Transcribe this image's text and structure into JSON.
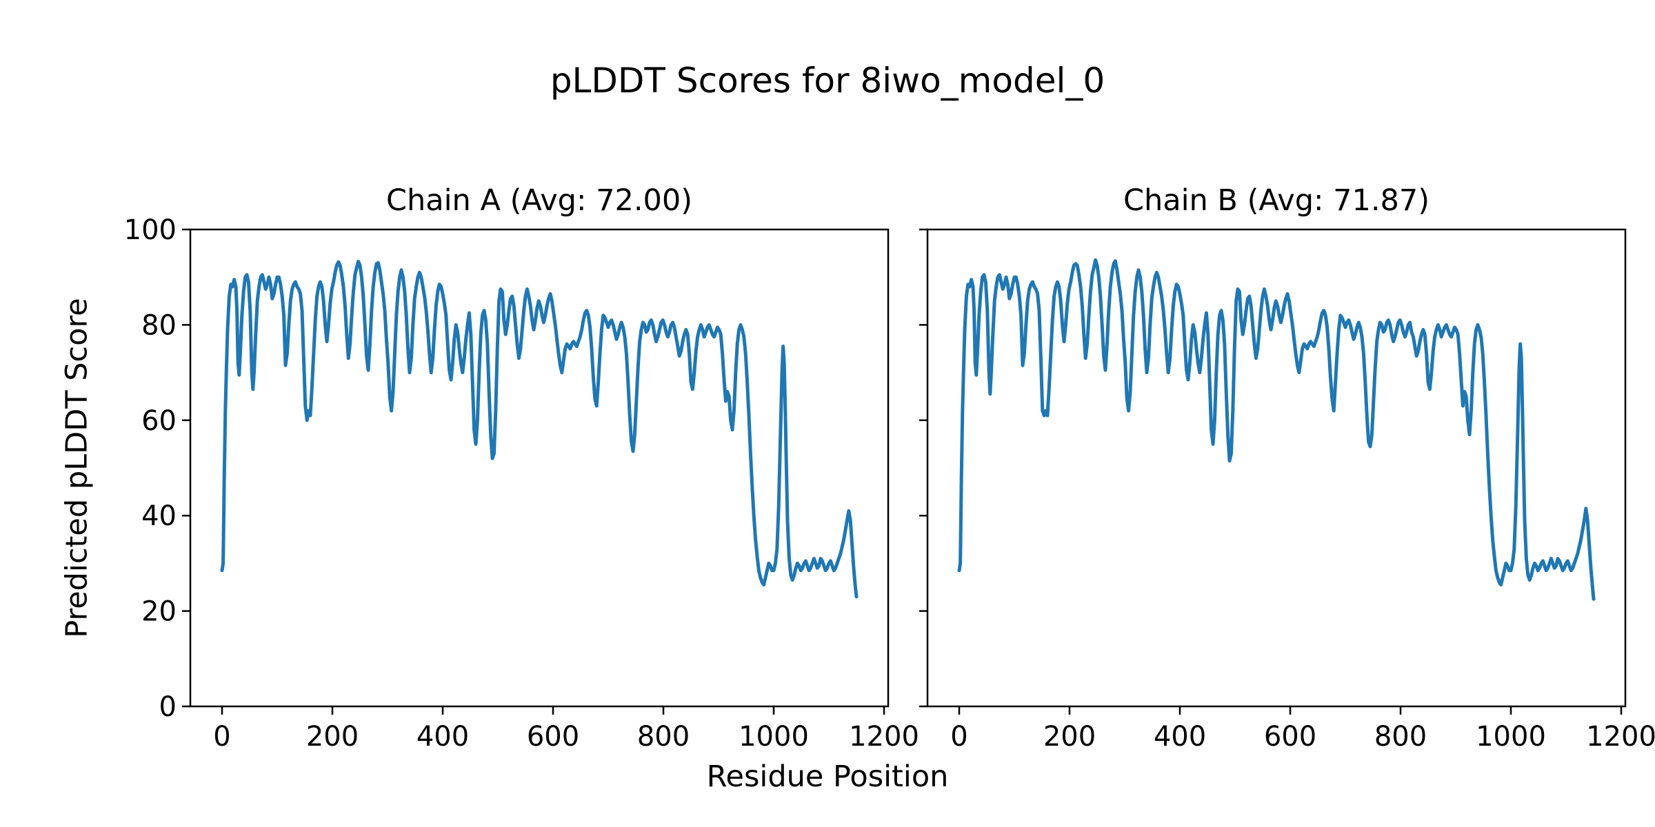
{
  "figure": {
    "suptitle": "pLDDT Scores for 8iwo_model_0",
    "background_color": "#ffffff",
    "text_color": "#000000"
  },
  "chart_data": {
    "type": "line",
    "title": "pLDDT Scores for 8iwo_model_0",
    "xlabel": "Residue Position",
    "ylabel": "Predicted pLDDT Score",
    "xlim": [
      -57.5,
      1207.5
    ],
    "ylim": [
      0,
      100
    ],
    "xticks": [
      0,
      200,
      400,
      600,
      800,
      1000,
      1200
    ],
    "yticks": [
      0,
      20,
      40,
      60,
      80,
      100
    ],
    "grid": false,
    "legend_position": "none",
    "line_color": "#1f77b4",
    "spine_color": "#000000",
    "x": [
      0,
      2,
      4,
      6,
      8,
      10,
      13,
      16,
      19,
      22,
      25,
      27,
      29,
      31,
      33,
      36,
      39,
      42,
      45,
      48,
      51,
      54,
      56,
      58,
      61,
      64,
      67,
      70,
      73,
      76,
      79,
      82,
      85,
      88,
      91,
      94,
      97,
      100,
      103,
      106,
      109,
      112,
      115,
      118,
      121,
      124,
      127,
      130,
      133,
      136,
      139,
      142,
      145,
      148,
      151,
      154,
      157,
      160,
      163,
      166,
      169,
      172,
      175,
      178,
      181,
      184,
      187,
      190,
      193,
      196,
      199,
      202,
      205,
      208,
      211,
      214,
      217,
      220,
      223,
      226,
      229,
      232,
      235,
      238,
      241,
      244,
      247,
      250,
      253,
      256,
      259,
      262,
      265,
      268,
      271,
      274,
      277,
      280,
      283,
      286,
      289,
      292,
      295,
      298,
      301,
      304,
      307,
      310,
      313,
      316,
      319,
      322,
      325,
      328,
      331,
      334,
      337,
      340,
      343,
      346,
      349,
      352,
      355,
      358,
      361,
      364,
      367,
      370,
      373,
      376,
      379,
      382,
      385,
      388,
      391,
      394,
      397,
      400,
      403,
      406,
      409,
      412,
      415,
      418,
      421,
      424,
      427,
      430,
      433,
      436,
      439,
      442,
      445,
      448,
      451,
      454,
      457,
      460,
      463,
      466,
      469,
      472,
      475,
      478,
      481,
      484,
      487,
      490,
      493,
      496,
      499,
      502,
      505,
      508,
      511,
      514,
      517,
      520,
      523,
      526,
      529,
      532,
      535,
      538,
      541,
      544,
      547,
      550,
      553,
      556,
      559,
      562,
      565,
      568,
      571,
      574,
      577,
      580,
      583,
      586,
      589,
      592,
      595,
      598,
      601,
      604,
      607,
      610,
      613,
      616,
      619,
      622,
      625,
      628,
      631,
      634,
      637,
      640,
      643,
      646,
      649,
      652,
      655,
      658,
      661,
      664,
      667,
      670,
      673,
      676,
      679,
      682,
      685,
      688,
      691,
      694,
      697,
      700,
      703,
      706,
      709,
      712,
      715,
      718,
      721,
      724,
      727,
      730,
      733,
      736,
      739,
      742,
      745,
      748,
      751,
      754,
      757,
      760,
      763,
      766,
      769,
      772,
      775,
      778,
      781,
      784,
      787,
      790,
      793,
      796,
      799,
      802,
      805,
      808,
      811,
      814,
      817,
      820,
      823,
      826,
      829,
      832,
      835,
      838,
      841,
      844,
      847,
      850,
      853,
      856,
      859,
      862,
      865,
      868,
      871,
      874,
      877,
      880,
      883,
      886,
      889,
      892,
      895,
      898,
      901,
      904,
      907,
      910,
      913,
      916,
      919,
      922,
      925,
      928,
      931,
      934,
      937,
      940,
      943,
      946,
      949,
      952,
      955,
      958,
      961,
      964,
      967,
      970,
      973,
      976,
      979,
      982,
      985,
      988,
      991,
      994,
      997,
      1000,
      1003,
      1006,
      1009,
      1012,
      1015,
      1017,
      1019,
      1021,
      1023,
      1025,
      1028,
      1031,
      1034,
      1037,
      1040,
      1043,
      1046,
      1049,
      1052,
      1055,
      1058,
      1061,
      1064,
      1067,
      1070,
      1073,
      1076,
      1079,
      1082,
      1085,
      1088,
      1091,
      1094,
      1097,
      1100,
      1103,
      1106,
      1109,
      1112,
      1115,
      1118,
      1121,
      1124,
      1127,
      1130,
      1133,
      1136,
      1139,
      1142,
      1145,
      1148,
      1150
    ],
    "subplots": [
      {
        "title": "Chain A (Avg: 72.00)",
        "series_name": "Chain A",
        "avg": 72.0,
        "y": [
          28.5,
          30,
          48,
          62,
          71,
          79,
          86,
          88.5,
          88,
          89.5,
          88,
          83,
          72,
          69.5,
          74,
          82,
          87,
          90,
          90.5,
          89,
          83,
          70,
          66.5,
          70,
          78,
          85,
          88,
          90,
          90.5,
          89,
          87.5,
          88.5,
          90,
          88.5,
          85.5,
          86.5,
          88.5,
          90,
          90,
          88.5,
          86,
          82,
          71.5,
          74,
          80,
          85,
          87.5,
          88.5,
          89,
          88,
          87.5,
          86.5,
          83,
          73,
          63,
          60,
          62,
          61,
          67,
          74,
          81,
          86,
          88,
          89,
          88,
          85,
          80,
          76.5,
          80,
          84.5,
          87.5,
          89,
          91,
          92.5,
          93.2,
          92.5,
          90.5,
          88,
          84,
          78,
          73,
          76,
          82,
          87,
          90.5,
          92,
          93.3,
          92.5,
          90,
          86,
          80,
          73.5,
          70.5,
          76,
          83,
          88,
          91,
          92.8,
          93,
          91.5,
          89,
          86.5,
          83,
          77,
          72,
          65,
          62,
          66,
          74,
          82,
          87,
          90,
          91.5,
          90,
          87,
          82,
          75,
          70,
          73,
          80,
          85.5,
          88,
          90,
          91,
          90,
          88,
          86,
          83,
          79,
          74,
          70,
          73,
          79,
          84,
          87,
          88.5,
          88,
          86.5,
          84.5,
          82,
          76,
          70.5,
          68.5,
          72,
          77,
          80,
          78.5,
          75,
          72,
          70,
          73,
          77,
          80,
          82.5,
          78,
          68,
          58,
          55,
          60,
          70,
          78,
          82,
          83,
          81,
          76,
          66,
          57,
          52,
          53,
          62,
          75,
          85,
          87.5,
          87,
          81,
          78,
          80,
          83,
          85.5,
          86,
          84,
          80,
          76,
          73,
          75,
          79,
          83,
          86,
          87.5,
          86,
          84,
          81,
          79,
          81,
          83.5,
          85,
          84,
          82,
          80.5,
          82,
          84,
          85.5,
          86.5,
          85,
          82.5,
          80,
          77,
          74,
          71.5,
          70,
          72.5,
          75,
          76,
          75.5,
          75,
          76,
          76.5,
          76,
          75.5,
          76.5,
          77.5,
          79,
          81,
          82.5,
          83,
          82,
          79.5,
          75,
          69,
          64.5,
          63,
          68,
          74,
          79,
          82,
          81.5,
          80.5,
          79.5,
          80.5,
          81,
          80,
          78.5,
          77,
          78,
          79.5,
          80.5,
          79.5,
          77.5,
          74,
          68,
          61,
          55.5,
          53.5,
          57,
          64,
          71,
          76.5,
          79,
          80.5,
          80,
          78.5,
          79,
          80.5,
          81,
          80,
          78,
          76.5,
          77.5,
          79,
          80.5,
          81,
          80,
          78.5,
          77.5,
          78.5,
          80,
          80.5,
          79.5,
          77.5,
          75.5,
          73.5,
          74.5,
          76.5,
          78,
          79,
          78,
          74,
          68,
          66.5,
          70,
          74.5,
          77.5,
          79,
          80,
          79,
          77.5,
          78.5,
          79.5,
          80,
          79,
          78,
          77.5,
          78.5,
          79.5,
          79,
          78,
          74,
          68.5,
          64,
          66,
          65,
          60,
          58,
          62,
          70,
          76,
          79,
          80,
          79,
          77.5,
          74,
          68,
          61,
          53,
          46,
          40,
          35,
          31.5,
          28.5,
          27,
          26,
          25.5,
          27,
          28.5,
          30,
          29.5,
          28.5,
          28.5,
          30,
          33,
          42,
          56,
          70,
          75.5,
          72,
          62,
          50,
          39,
          31,
          27.5,
          26.5,
          27.5,
          29,
          30,
          29.5,
          28.5,
          29,
          30,
          30.5,
          29.5,
          28.5,
          29,
          30,
          31,
          30,
          29,
          29.5,
          31,
          30.5,
          29.5,
          28.5,
          29,
          30,
          30.5,
          29.5,
          28.5,
          29,
          30,
          31,
          32,
          33.5,
          35,
          37,
          39,
          41,
          39,
          34,
          29,
          25,
          23
        ]
      },
      {
        "title": "Chain B (Avg: 71.87)",
        "series_name": "Chain B",
        "avg": 71.87,
        "y": [
          28.5,
          30,
          48,
          62,
          71,
          79,
          86,
          88.5,
          88,
          89.5,
          88,
          83,
          72,
          69.5,
          74,
          82,
          87,
          90,
          90.5,
          89,
          83,
          70,
          65.5,
          70,
          78,
          85,
          88,
          90,
          90.5,
          89,
          87.5,
          88.5,
          90,
          88.5,
          85.5,
          86.5,
          88.5,
          90,
          90,
          88.5,
          86,
          82,
          71.5,
          74,
          80,
          85,
          87.5,
          88.5,
          89,
          88,
          87.5,
          86.5,
          83,
          73,
          62,
          61,
          62,
          61,
          67,
          74,
          81,
          86,
          88,
          89,
          88,
          85,
          80,
          76.5,
          80,
          84.5,
          87.5,
          89,
          91,
          92.5,
          92.8,
          92.5,
          90.5,
          88,
          84,
          78,
          73,
          76,
          82,
          87,
          90.5,
          92,
          93.6,
          92.5,
          90,
          86,
          80,
          73.5,
          70.5,
          76,
          83,
          88,
          91,
          92.8,
          93.4,
          91.5,
          89,
          86.5,
          83,
          77,
          72,
          64.5,
          62,
          66,
          74,
          82,
          87,
          90,
          91.5,
          90,
          87,
          82,
          75,
          70,
          73,
          80,
          85.5,
          88,
          90,
          91,
          90,
          88,
          86,
          83,
          79,
          74,
          70,
          73,
          79,
          84,
          87,
          88.5,
          88,
          86.5,
          84.5,
          82,
          76,
          70.5,
          68.5,
          72,
          77,
          80,
          78.5,
          75,
          72,
          70,
          73,
          77,
          80,
          82.5,
          78,
          68,
          58,
          55,
          60,
          70,
          78,
          82,
          83,
          81,
          76,
          66,
          57,
          51.5,
          53,
          62,
          75,
          85,
          87.5,
          87,
          81,
          78,
          80,
          83,
          85.5,
          86,
          84,
          80,
          76,
          73,
          75,
          79,
          83,
          86,
          87.5,
          86,
          84,
          81,
          79,
          81,
          83.5,
          85,
          84,
          82,
          80.5,
          82,
          84,
          85.5,
          86.5,
          85,
          82.5,
          80,
          77,
          74,
          71.5,
          70,
          72.5,
          75,
          76,
          75.5,
          75,
          76,
          76.5,
          76,
          75.5,
          76.5,
          77.5,
          79,
          81,
          82.5,
          83,
          82,
          79.5,
          75,
          69,
          64.5,
          62,
          68,
          74,
          79,
          82,
          81.5,
          80.5,
          79.5,
          80.5,
          81,
          80,
          78.5,
          77,
          78,
          79.5,
          80.5,
          79.5,
          77.5,
          74,
          68,
          61,
          55.5,
          54.5,
          57,
          64,
          71,
          76.5,
          79,
          80.5,
          80,
          78.5,
          79,
          80.5,
          81,
          80,
          78,
          76.5,
          77.5,
          79,
          80.5,
          81,
          80,
          78.5,
          77.5,
          78.5,
          80,
          80.5,
          78.5,
          77.5,
          75.5,
          73.5,
          74.5,
          76.5,
          78,
          79,
          78,
          74,
          68,
          66.5,
          70,
          74.5,
          77.5,
          79,
          80,
          79,
          77.5,
          78.5,
          79.5,
          80,
          79,
          78,
          77.5,
          78.5,
          79.5,
          79,
          78,
          74,
          68.5,
          63,
          66,
          65,
          60,
          57,
          62,
          70,
          76,
          79,
          80,
          79,
          77.5,
          74,
          68,
          61,
          53,
          46,
          40,
          35,
          31.5,
          28.5,
          27,
          26,
          25.5,
          27,
          28.5,
          30,
          29.5,
          28.5,
          28.5,
          30,
          33,
          42,
          56,
          71,
          76,
          73,
          62,
          50,
          39,
          31,
          27.5,
          26.5,
          27.5,
          29,
          30,
          29.5,
          28.5,
          29,
          30,
          30.5,
          29.5,
          28.5,
          29,
          30,
          31,
          30,
          29,
          29.5,
          31,
          30.5,
          29.5,
          28.5,
          29,
          30,
          30.5,
          29.5,
          28.5,
          29,
          30,
          31,
          32,
          33.5,
          35,
          37,
          39,
          41.5,
          39,
          34,
          29,
          25,
          22.5
        ]
      }
    ]
  }
}
